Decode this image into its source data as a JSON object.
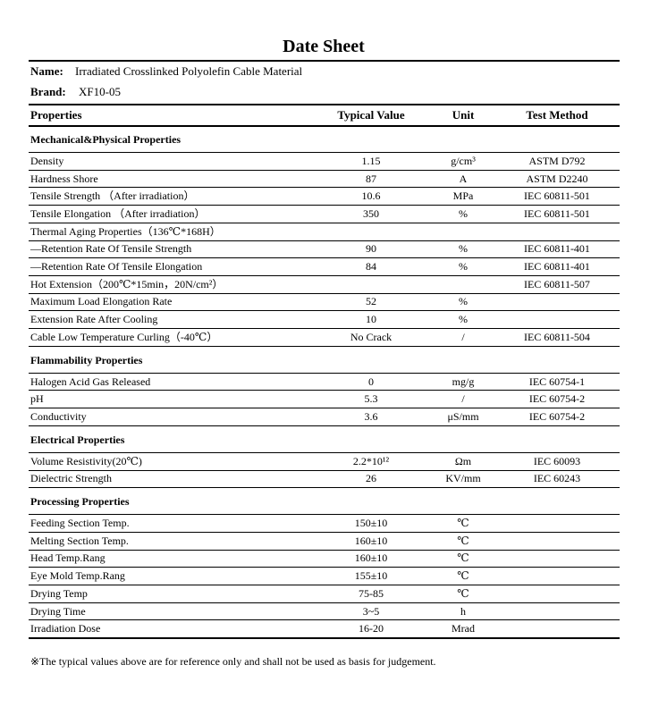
{
  "title": "Date Sheet",
  "name": {
    "label": "Name:",
    "value": "Irradiated Crosslinked Polyolefin Cable Material"
  },
  "brand": {
    "label": "Brand:",
    "value": "XF10-05"
  },
  "table": {
    "headers": [
      "Properties",
      "Typical Value",
      "Unit",
      "Test Method"
    ],
    "sections": [
      {
        "title": "Mechanical&Physical Properties",
        "rows": [
          {
            "property": "Density",
            "value": "1.15",
            "unit": "g/cm³",
            "method": "ASTM D792"
          },
          {
            "property": "Hardness Shore",
            "value": "87",
            "unit": "A",
            "method": "ASTM D2240"
          },
          {
            "property": "Tensile Strength （After irradiation）",
            "value": "10.6",
            "unit": "MPa",
            "method": "IEC 60811-501"
          },
          {
            "property": "Tensile Elongation （After irradiation）",
            "value": "350",
            "unit": "%",
            "method": "IEC 60811-501"
          },
          {
            "property": "Thermal Aging Properties（136℃*168H）"
          },
          {
            "property": "—Retention Rate Of Tensile Strength",
            "value": "90",
            "unit": "%",
            "method": "IEC 60811-401"
          },
          {
            "property": "—Retention Rate Of Tensile Elongation",
            "value": "84",
            "unit": "%",
            "method": "IEC 60811-401"
          },
          {
            "property": "Hot Extension（200℃*15min，20N/cm²）",
            "method": "IEC 60811-507"
          },
          {
            "property": "Maximum Load Elongation Rate",
            "value": "52",
            "unit": "%"
          },
          {
            "property": "Extension Rate After Cooling",
            "value": "10",
            "unit": "%"
          },
          {
            "property": "Cable Low Temperature Curling（-40℃）",
            "value": "No Crack",
            "unit": "/",
            "method": "IEC 60811-504"
          }
        ]
      },
      {
        "title": "Flammability Properties",
        "rows": [
          {
            "property": "Halogen Acid Gas Released",
            "value": "0",
            "unit": "mg/g",
            "method": "IEC 60754-1"
          },
          {
            "property": "pH",
            "value": "5.3",
            "unit": "/",
            "method": "IEC 60754-2"
          },
          {
            "property": "Conductivity",
            "value": "3.6",
            "unit": "μS/mm",
            "method": "IEC 60754-2"
          }
        ]
      },
      {
        "title": "Electrical Properties",
        "rows": [
          {
            "property": "Volume Resistivity(20℃)",
            "value": "2.2*10¹²",
            "unit": "Ωm",
            "method": "IEC 60093"
          },
          {
            "property": "Dielectric Strength",
            "value": "26",
            "unit": "KV/mm",
            "method": "IEC 60243"
          }
        ]
      },
      {
        "title": "Processing Properties",
        "rows": [
          {
            "property": "Feeding Section Temp.",
            "value": "150±10",
            "unit": "℃"
          },
          {
            "property": "Melting Section Temp.",
            "value": "160±10",
            "unit": "℃"
          },
          {
            "property": "Head Temp.Rang",
            "value": "160±10",
            "unit": "℃"
          },
          {
            "property": "Eye Mold Temp.Rang",
            "value": "155±10",
            "unit": "℃"
          },
          {
            "property": "Drying Temp",
            "value": "75-85",
            "unit": "℃"
          },
          {
            "property": "Drying Time",
            "value": "3~5",
            "unit": "h"
          },
          {
            "property": "Irradiation Dose",
            "value": "16-20",
            "unit": "Mrad"
          }
        ]
      }
    ]
  },
  "note": "※The typical values above are for reference only and shall not be used as basis for judgement."
}
